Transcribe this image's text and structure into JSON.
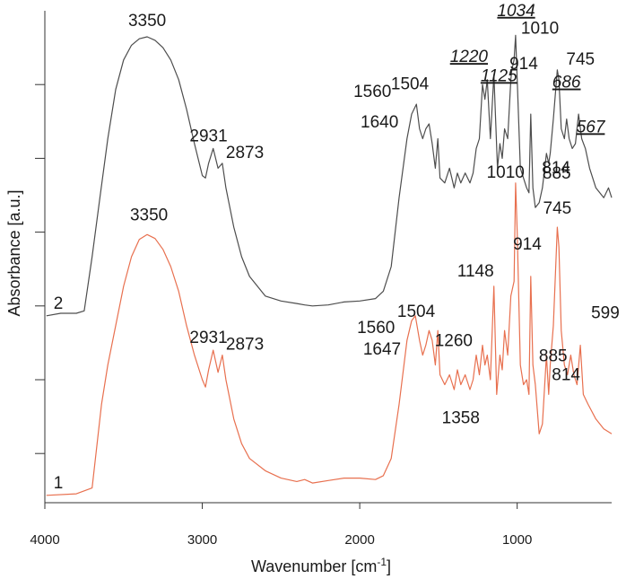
{
  "chart_data": {
    "type": "line",
    "x_axis": {
      "label_prefix": "Wavenumber [cm",
      "label_superscript": "-1",
      "label_suffix": "]",
      "min": 4000,
      "max": 400,
      "reversed": true,
      "ticks": [
        4000,
        3000,
        2000,
        1000
      ],
      "tick_labels": [
        "4000",
        "3000",
        "2000",
        "1000"
      ]
    },
    "y_axis": {
      "label": "Absorbance [a.u.]",
      "tick_labels_shown": false,
      "ticks": [
        0.1,
        0.25,
        0.4,
        0.55,
        0.7,
        0.85
      ]
    },
    "grid": false,
    "series": [
      {
        "name": "1",
        "color": "#e8704f",
        "points": [
          [
            3990,
            0.015
          ],
          [
            3800,
            0.018
          ],
          [
            3700,
            0.03
          ],
          [
            3640,
            0.2
          ],
          [
            3600,
            0.28
          ],
          [
            3550,
            0.36
          ],
          [
            3500,
            0.44
          ],
          [
            3450,
            0.5
          ],
          [
            3400,
            0.535
          ],
          [
            3350,
            0.545
          ],
          [
            3300,
            0.537
          ],
          [
            3250,
            0.515
          ],
          [
            3200,
            0.48
          ],
          [
            3150,
            0.43
          ],
          [
            3100,
            0.36
          ],
          [
            3050,
            0.3
          ],
          [
            3000,
            0.25
          ],
          [
            2980,
            0.235
          ],
          [
            2960,
            0.27
          ],
          [
            2931,
            0.31
          ],
          [
            2900,
            0.265
          ],
          [
            2873,
            0.3
          ],
          [
            2850,
            0.25
          ],
          [
            2800,
            0.17
          ],
          [
            2750,
            0.12
          ],
          [
            2700,
            0.09
          ],
          [
            2600,
            0.065
          ],
          [
            2500,
            0.05
          ],
          [
            2400,
            0.043
          ],
          [
            2350,
            0.047
          ],
          [
            2300,
            0.04
          ],
          [
            2200,
            0.045
          ],
          [
            2100,
            0.05
          ],
          [
            2000,
            0.05
          ],
          [
            1900,
            0.047
          ],
          [
            1850,
            0.055
          ],
          [
            1800,
            0.09
          ],
          [
            1750,
            0.2
          ],
          [
            1700,
            0.33
          ],
          [
            1670,
            0.37
          ],
          [
            1647,
            0.38
          ],
          [
            1620,
            0.33
          ],
          [
            1600,
            0.3
          ],
          [
            1580,
            0.32
          ],
          [
            1560,
            0.35
          ],
          [
            1540,
            0.33
          ],
          [
            1520,
            0.28
          ],
          [
            1504,
            0.35
          ],
          [
            1490,
            0.26
          ],
          [
            1460,
            0.24
          ],
          [
            1430,
            0.26
          ],
          [
            1400,
            0.23
          ],
          [
            1380,
            0.27
          ],
          [
            1358,
            0.24
          ],
          [
            1330,
            0.26
          ],
          [
            1300,
            0.23
          ],
          [
            1280,
            0.25
          ],
          [
            1260,
            0.3
          ],
          [
            1240,
            0.26
          ],
          [
            1220,
            0.32
          ],
          [
            1205,
            0.28
          ],
          [
            1190,
            0.3
          ],
          [
            1170,
            0.25
          ],
          [
            1148,
            0.44
          ],
          [
            1130,
            0.22
          ],
          [
            1110,
            0.3
          ],
          [
            1095,
            0.27
          ],
          [
            1080,
            0.35
          ],
          [
            1060,
            0.3
          ],
          [
            1040,
            0.42
          ],
          [
            1020,
            0.45
          ],
          [
            1010,
            0.65
          ],
          [
            1000,
            0.55
          ],
          [
            980,
            0.28
          ],
          [
            960,
            0.24
          ],
          [
            940,
            0.25
          ],
          [
            925,
            0.22
          ],
          [
            914,
            0.46
          ],
          [
            900,
            0.28
          ],
          [
            885,
            0.24
          ],
          [
            860,
            0.14
          ],
          [
            840,
            0.16
          ],
          [
            814,
            0.3
          ],
          [
            800,
            0.22
          ],
          [
            790,
            0.28
          ],
          [
            770,
            0.36
          ],
          [
            745,
            0.56
          ],
          [
            735,
            0.52
          ],
          [
            720,
            0.35
          ],
          [
            700,
            0.28
          ],
          [
            680,
            0.26
          ],
          [
            660,
            0.3
          ],
          [
            640,
            0.26
          ],
          [
            620,
            0.24
          ],
          [
            599,
            0.32
          ],
          [
            580,
            0.22
          ],
          [
            550,
            0.2
          ],
          [
            500,
            0.17
          ],
          [
            450,
            0.15
          ],
          [
            400,
            0.14
          ]
        ]
      },
      {
        "name": "2",
        "color": "#4d4d4d",
        "points": [
          [
            3990,
            0.38
          ],
          [
            3900,
            0.385
          ],
          [
            3800,
            0.385
          ],
          [
            3750,
            0.39
          ],
          [
            3700,
            0.5
          ],
          [
            3650,
            0.62
          ],
          [
            3600,
            0.74
          ],
          [
            3550,
            0.84
          ],
          [
            3500,
            0.9
          ],
          [
            3450,
            0.93
          ],
          [
            3400,
            0.943
          ],
          [
            3350,
            0.947
          ],
          [
            3300,
            0.94
          ],
          [
            3250,
            0.925
          ],
          [
            3200,
            0.9
          ],
          [
            3150,
            0.86
          ],
          [
            3100,
            0.8
          ],
          [
            3050,
            0.73
          ],
          [
            3000,
            0.665
          ],
          [
            2980,
            0.66
          ],
          [
            2960,
            0.69
          ],
          [
            2931,
            0.72
          ],
          [
            2900,
            0.68
          ],
          [
            2873,
            0.69
          ],
          [
            2850,
            0.64
          ],
          [
            2800,
            0.56
          ],
          [
            2750,
            0.5
          ],
          [
            2700,
            0.46
          ],
          [
            2600,
            0.42
          ],
          [
            2500,
            0.41
          ],
          [
            2400,
            0.405
          ],
          [
            2350,
            0.402
          ],
          [
            2300,
            0.4
          ],
          [
            2200,
            0.402
          ],
          [
            2100,
            0.408
          ],
          [
            2000,
            0.41
          ],
          [
            1900,
            0.415
          ],
          [
            1850,
            0.43
          ],
          [
            1800,
            0.48
          ],
          [
            1750,
            0.62
          ],
          [
            1700,
            0.74
          ],
          [
            1670,
            0.79
          ],
          [
            1640,
            0.81
          ],
          [
            1620,
            0.76
          ],
          [
            1600,
            0.74
          ],
          [
            1580,
            0.76
          ],
          [
            1560,
            0.77
          ],
          [
            1540,
            0.73
          ],
          [
            1520,
            0.68
          ],
          [
            1504,
            0.74
          ],
          [
            1490,
            0.66
          ],
          [
            1460,
            0.65
          ],
          [
            1430,
            0.68
          ],
          [
            1400,
            0.64
          ],
          [
            1380,
            0.67
          ],
          [
            1358,
            0.65
          ],
          [
            1330,
            0.67
          ],
          [
            1300,
            0.65
          ],
          [
            1280,
            0.67
          ],
          [
            1260,
            0.72
          ],
          [
            1240,
            0.74
          ],
          [
            1220,
            0.85
          ],
          [
            1205,
            0.82
          ],
          [
            1190,
            0.86
          ],
          [
            1170,
            0.74
          ],
          [
            1148,
            0.87
          ],
          [
            1125,
            0.68
          ],
          [
            1110,
            0.73
          ],
          [
            1095,
            0.7
          ],
          [
            1080,
            0.76
          ],
          [
            1060,
            0.74
          ],
          [
            1040,
            0.86
          ],
          [
            1034,
            0.88
          ],
          [
            1020,
            0.9
          ],
          [
            1010,
            0.95
          ],
          [
            1000,
            0.86
          ],
          [
            980,
            0.68
          ],
          [
            960,
            0.66
          ],
          [
            940,
            0.64
          ],
          [
            925,
            0.63
          ],
          [
            914,
            0.79
          ],
          [
            900,
            0.64
          ],
          [
            885,
            0.6
          ],
          [
            860,
            0.61
          ],
          [
            840,
            0.64
          ],
          [
            814,
            0.71
          ],
          [
            800,
            0.69
          ],
          [
            790,
            0.71
          ],
          [
            770,
            0.78
          ],
          [
            745,
            0.88
          ],
          [
            735,
            0.86
          ],
          [
            720,
            0.76
          ],
          [
            700,
            0.74
          ],
          [
            686,
            0.78
          ],
          [
            670,
            0.74
          ],
          [
            650,
            0.72
          ],
          [
            630,
            0.73
          ],
          [
            610,
            0.79
          ],
          [
            590,
            0.74
          ],
          [
            567,
            0.72
          ],
          [
            540,
            0.68
          ],
          [
            500,
            0.64
          ],
          [
            450,
            0.62
          ],
          [
            420,
            0.64
          ],
          [
            400,
            0.62
          ]
        ]
      }
    ],
    "peak_labels": [
      {
        "series": "2",
        "text": "3350",
        "x": 3350,
        "y": 0.947,
        "anchor": "middle",
        "dx": 0,
        "dy": -12,
        "underline": false
      },
      {
        "series": "2",
        "text": "2931",
        "x": 2931,
        "y": 0.72,
        "anchor": "end",
        "dx": 16,
        "dy": -8,
        "underline": false
      },
      {
        "series": "2",
        "text": "2873",
        "x": 2873,
        "y": 0.69,
        "anchor": "start",
        "dx": 4,
        "dy": -6,
        "underline": false
      },
      {
        "series": "2",
        "text": "1640",
        "x": 1640,
        "y": 0.81,
        "anchor": "end",
        "dx": -20,
        "dy": 26,
        "underline": false
      },
      {
        "series": "2",
        "text": "1560",
        "x": 1560,
        "y": 0.77,
        "anchor": "end",
        "dx": -42,
        "dy": -30,
        "underline": false
      },
      {
        "series": "2",
        "text": "1504",
        "x": 1504,
        "y": 0.74,
        "anchor": "end",
        "dx": -10,
        "dy": -55,
        "underline": false
      },
      {
        "series": "2",
        "text": "1220",
        "x": 1220,
        "y": 0.85,
        "anchor": "end",
        "dx": 6,
        "dy": -25,
        "underline": true
      },
      {
        "series": "2",
        "text": "1125",
        "x": 1125,
        "y": 0.68,
        "anchor": "end",
        "dx": 22,
        "dy": -97,
        "underline": true
      },
      {
        "series": "2",
        "text": "1034",
        "x": 1034,
        "y": 0.88,
        "anchor": "end",
        "dx": 26,
        "dy": -60,
        "underline": true
      },
      {
        "series": "2",
        "text": "1010",
        "x": 1010,
        "y": 0.95,
        "anchor": "start",
        "dx": 6,
        "dy": -2,
        "underline": false
      },
      {
        "series": "2",
        "text": "914",
        "x": 914,
        "y": 0.79,
        "anchor": "end",
        "dx": 8,
        "dy": -50,
        "underline": false
      },
      {
        "series": "2",
        "text": "745",
        "x": 745,
        "y": 0.88,
        "anchor": "start",
        "dx": 10,
        "dy": -6,
        "underline": false
      },
      {
        "series": "2",
        "text": "686",
        "x": 686,
        "y": 0.78,
        "anchor": "start",
        "dx": -16,
        "dy": -35,
        "underline": true
      },
      {
        "series": "2",
        "text": "567",
        "x": 567,
        "y": 0.72,
        "anchor": "start",
        "dx": -10,
        "dy": -18,
        "underline": true
      },
      {
        "series": "2",
        "text": "885",
        "x": 885,
        "y": 0.6,
        "anchor": "start",
        "dx": 8,
        "dy": -32,
        "underline": false
      },
      {
        "series": "2",
        "text": "814",
        "x": 814,
        "y": 0.71,
        "anchor": "start",
        "dx": -5,
        "dy": 22,
        "underline": false
      },
      {
        "series": "1",
        "text": "3350",
        "x": 3350,
        "y": 0.545,
        "anchor": "middle",
        "dx": 2,
        "dy": -16,
        "underline": false
      },
      {
        "series": "1",
        "text": "2931",
        "x": 2931,
        "y": 0.31,
        "anchor": "end",
        "dx": 16,
        "dy": -8,
        "underline": false
      },
      {
        "series": "1",
        "text": "2873",
        "x": 2873,
        "y": 0.3,
        "anchor": "start",
        "dx": 4,
        "dy": -6,
        "underline": false
      },
      {
        "series": "1",
        "text": "1647",
        "x": 1647,
        "y": 0.38,
        "anchor": "end",
        "dx": -16,
        "dy": 43,
        "underline": false
      },
      {
        "series": "1",
        "text": "1560",
        "x": 1560,
        "y": 0.35,
        "anchor": "end",
        "dx": -38,
        "dy": 3,
        "underline": false
      },
      {
        "series": "1",
        "text": "1504",
        "x": 1504,
        "y": 0.35,
        "anchor": "end",
        "dx": -3,
        "dy": -15,
        "underline": false
      },
      {
        "series": "1",
        "text": "1260",
        "x": 1260,
        "y": 0.3,
        "anchor": "end",
        "dx": -4,
        "dy": -10,
        "underline": false
      },
      {
        "series": "1",
        "text": "1358",
        "x": 1358,
        "y": 0.24,
        "anchor": "middle",
        "dx": 0,
        "dy": 43,
        "underline": false
      },
      {
        "series": "1",
        "text": "1148",
        "x": 1148,
        "y": 0.44,
        "anchor": "end",
        "dx": 0,
        "dy": -11,
        "underline": false
      },
      {
        "series": "1",
        "text": "1010",
        "x": 1010,
        "y": 0.65,
        "anchor": "end",
        "dx": 10,
        "dy": -6,
        "underline": false
      },
      {
        "series": "1",
        "text": "914",
        "x": 914,
        "y": 0.46,
        "anchor": "end",
        "dx": 12,
        "dy": -30,
        "underline": false
      },
      {
        "series": "1",
        "text": "745",
        "x": 745,
        "y": 0.56,
        "anchor": "middle",
        "dx": 0,
        "dy": -15,
        "underline": false
      },
      {
        "series": "1",
        "text": "885",
        "x": 885,
        "y": 0.24,
        "anchor": "start",
        "dx": 4,
        "dy": -26,
        "underline": false
      },
      {
        "series": "1",
        "text": "814",
        "x": 814,
        "y": 0.3,
        "anchor": "start",
        "dx": 6,
        "dy": 28,
        "underline": false
      },
      {
        "series": "1",
        "text": "599",
        "x": 599,
        "y": 0.32,
        "anchor": "start",
        "dx": 12,
        "dy": -30,
        "underline": false
      }
    ]
  }
}
